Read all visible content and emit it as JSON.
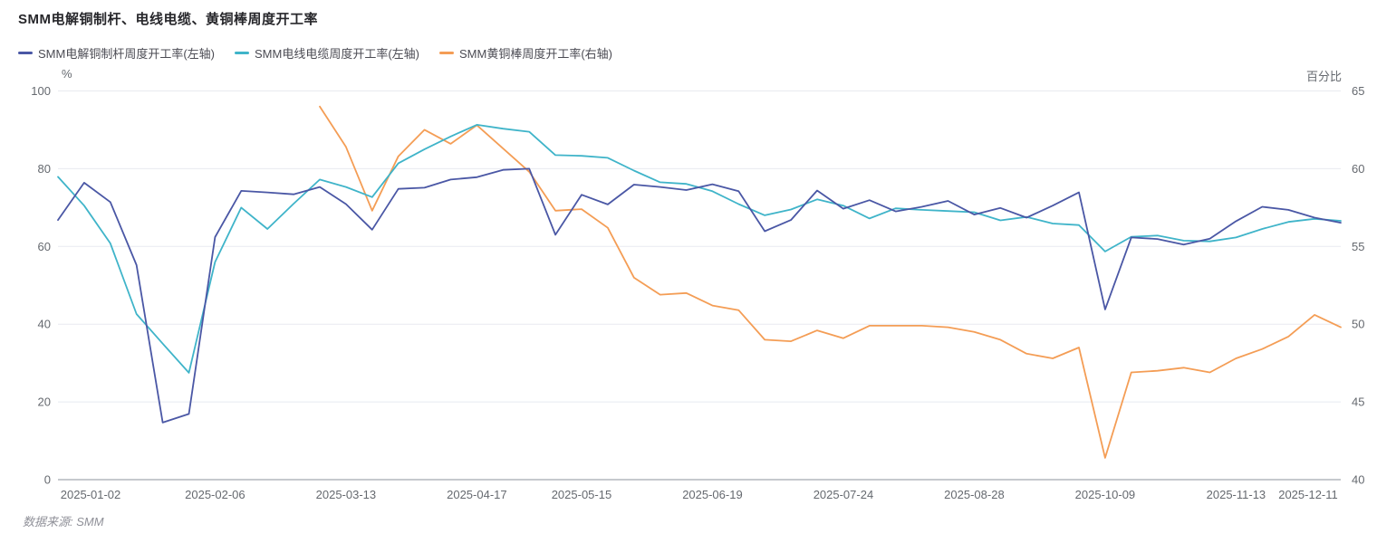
{
  "title": "SMM电解铜制杆、电线电缆、黄铜棒周度开工率",
  "source_note": "数据来源: SMM",
  "colors": {
    "copper_rod": "#4A57A5",
    "wire_cable": "#3FB4C9",
    "brass_rod": "#F49D55",
    "grid": "#E8EAF0",
    "axis_line": "#8E939E",
    "axis_text": "#65696F",
    "legend_text": "#4B4B53",
    "title_text": "#27272B",
    "source_text": "#8F9098"
  },
  "legend": {
    "items": [
      {
        "label": "SMM电解铜制杆周度开工率(左轴)",
        "series": "copper_rod"
      },
      {
        "label": "SMM电线电缆周度开工率(左轴)",
        "series": "wire_cable"
      },
      {
        "label": "SMM黄铜棒周度开工率(右轴)",
        "series": "brass_rod"
      }
    ]
  },
  "chart_data": {
    "type": "line",
    "title": "SMM电解铜制杆、电线电缆、黄铜棒周度开工率",
    "grid": true,
    "legend_position": "top-left",
    "x": [
      "2024-12-26",
      "2025-01-02",
      "2025-01-09",
      "2025-01-16",
      "2025-01-23",
      "2025-01-30",
      "2025-02-06",
      "2025-02-13",
      "2025-02-20",
      "2025-02-27",
      "2025-03-06",
      "2025-03-13",
      "2025-03-20",
      "2025-03-27",
      "2025-04-03",
      "2025-04-10",
      "2025-04-17",
      "2025-04-24",
      "2025-04-30",
      "2025-05-08",
      "2025-05-15",
      "2025-05-22",
      "2025-05-29",
      "2025-06-05",
      "2025-06-12",
      "2025-06-19",
      "2025-06-26",
      "2025-07-03",
      "2025-07-10",
      "2025-07-17",
      "2025-07-24",
      "2025-07-31",
      "2025-08-07",
      "2025-08-14",
      "2025-08-21",
      "2025-08-28",
      "2025-09-04",
      "2025-09-11",
      "2025-09-18",
      "2025-09-25",
      "2025-10-09",
      "2025-10-16",
      "2025-10-23",
      "2025-10-30",
      "2025-11-06",
      "2025-11-13",
      "2025-11-20",
      "2025-11-27",
      "2025-12-04",
      "2025-12-11"
    ],
    "x_tick_labels": [
      "2025-01-02",
      "2025-02-06",
      "2025-03-13",
      "2025-04-17",
      "2025-05-15",
      "2025-06-19",
      "2025-07-24",
      "2025-08-28",
      "2025-10-09",
      "2025-11-13",
      "2025-12-11"
    ],
    "y_left": {
      "unit": "%",
      "min": 0,
      "max": 100,
      "ticks": [
        0,
        20,
        40,
        60,
        80,
        100
      ]
    },
    "y_right": {
      "unit": "百分比",
      "min": 40,
      "max": 65,
      "ticks": [
        40,
        45,
        50,
        55,
        60,
        65
      ]
    },
    "series": [
      {
        "name": "SMM电解铜制杆周度开工率(左轴)",
        "axis": "left",
        "color_key": "copper_rod",
        "values": [
          66.8,
          76.4,
          71.4,
          55.2,
          14.7,
          16.9,
          62.4,
          74.3,
          73.9,
          73.4,
          75.3,
          70.9,
          64.3,
          74.8,
          75.1,
          77.2,
          77.8,
          79.7,
          80,
          63,
          73.3,
          70.8,
          75.9,
          75.3,
          74.5,
          76,
          74.2,
          63.9,
          66.8,
          74.4,
          69.7,
          71.9,
          69,
          70.2,
          71.7,
          68.2,
          69.9,
          67.4,
          70.5,
          73.9,
          43.8,
          62.3,
          61.9,
          60.5,
          62,
          66.5,
          70.2,
          69.4,
          67.4,
          66.1
        ]
      },
      {
        "name": "SMM电线电缆周度开工率(左轴)",
        "axis": "left",
        "color_key": "wire_cable",
        "values": [
          77.9,
          70.5,
          60.8,
          42.6,
          35,
          27.5,
          56,
          70,
          64.5,
          71,
          77.2,
          75.3,
          72.7,
          81.4,
          85,
          88.3,
          91.3,
          90.3,
          89.5,
          83.5,
          83.3,
          82.8,
          79.5,
          76.5,
          76.1,
          74.2,
          70.9,
          68,
          69.5,
          72.1,
          70.5,
          67.2,
          69.8,
          69.4,
          69.1,
          68.8,
          66.7,
          67.6,
          65.9,
          65.5,
          58.7,
          62.5,
          62.8,
          61.5,
          61.3,
          62.3,
          64.5,
          66.3,
          67.1,
          66.6
        ]
      },
      {
        "name": "SMM黄铜棒周度开工率(右轴)",
        "axis": "right",
        "color_key": "brass_rod",
        "values": [
          null,
          null,
          null,
          null,
          null,
          null,
          null,
          null,
          null,
          null,
          64,
          61.4,
          57.3,
          60.8,
          62.5,
          61.6,
          62.8,
          61.3,
          59.8,
          57.3,
          57.4,
          56.2,
          53,
          51.9,
          52,
          51.2,
          50.9,
          49,
          48.9,
          49.6,
          49.1,
          49.9,
          49.9,
          49.9,
          49.8,
          49.5,
          49,
          48.1,
          47.8,
          48.5,
          41.4,
          46.9,
          47,
          47.2,
          46.9,
          47.8,
          48.4,
          49.2,
          50.6,
          49.8
        ]
      }
    ]
  }
}
